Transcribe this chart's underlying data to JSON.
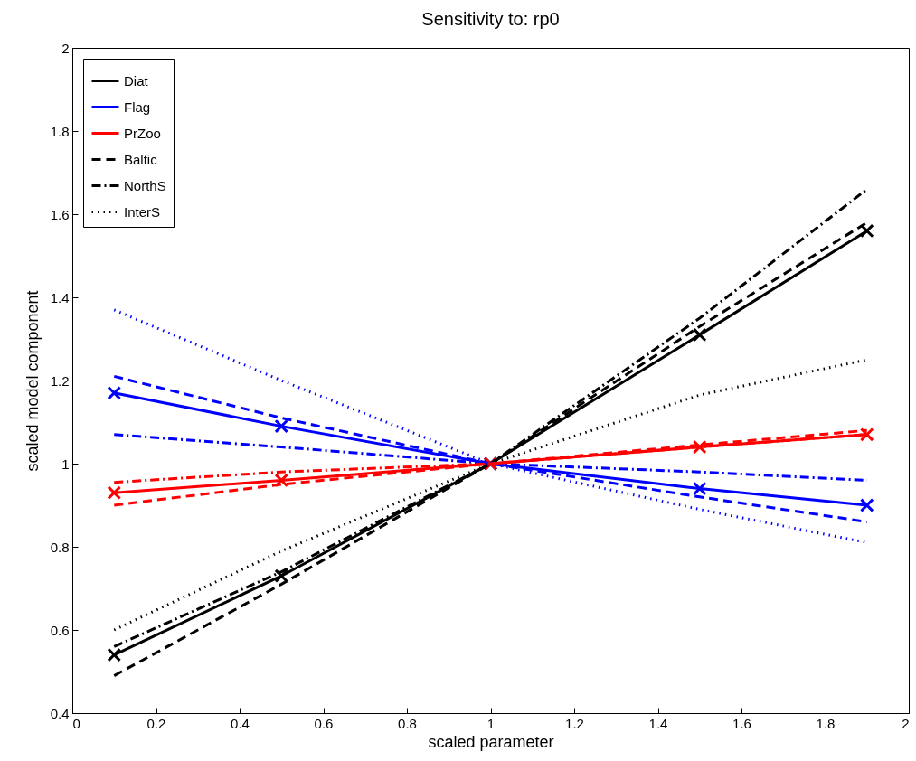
{
  "chart_data": {
    "type": "line",
    "title": "Sensitivity to: rp0",
    "xlabel": "scaled parameter",
    "ylabel": "scaled model component",
    "x": [
      0.1,
      0.5,
      1,
      1.5,
      1.9
    ],
    "xlim": [
      0,
      2
    ],
    "xticks": [
      0,
      0.2,
      0.4,
      0.6,
      0.8,
      1,
      1.2,
      1.4,
      1.6,
      1.8,
      2
    ],
    "ylim": [
      0.4,
      2
    ],
    "yticks": [
      0.4,
      0.6,
      0.8,
      1,
      1.2,
      1.4,
      1.6,
      1.8,
      2
    ],
    "grid": false,
    "legend": "top left",
    "series": [
      {
        "name": "Diat",
        "color": "#000000",
        "line_style": "solid",
        "marker": "cross",
        "values": [
          0.54,
          0.73,
          1,
          1.31,
          1.56
        ]
      },
      {
        "name": "Flag",
        "color": "#0000ff",
        "line_style": "solid",
        "marker": "cross",
        "values": [
          1.17,
          1.09,
          1,
          0.94,
          0.9
        ]
      },
      {
        "name": "PrZoo",
        "color": "#ff0000",
        "line_style": "solid",
        "marker": "cross",
        "values": [
          0.93,
          0.96,
          1,
          1.04,
          1.07
        ]
      },
      {
        "name": "Baltic",
        "color": "#000000",
        "line_style": "dashed",
        "marker": "none",
        "values": [
          0.49,
          0.71,
          1,
          1.33,
          1.58
        ]
      },
      {
        "name": "NorthS",
        "color": "#000000",
        "line_style": "dashdot",
        "marker": "none",
        "values": [
          0.56,
          0.74,
          1,
          1.35,
          1.66
        ]
      },
      {
        "name": "InterS",
        "color": "#000000",
        "line_style": "dotted",
        "marker": "none",
        "values": [
          0.6,
          0.79,
          1,
          1.165,
          1.25
        ]
      },
      {
        "color": "#0000ff",
        "line_style": "dashed",
        "marker": "none",
        "values": [
          1.21,
          1.11,
          1,
          0.92,
          0.86
        ]
      },
      {
        "color": "#0000ff",
        "line_style": "dashdot",
        "marker": "none",
        "values": [
          1.07,
          1.04,
          1,
          0.98,
          0.96
        ]
      },
      {
        "color": "#0000ff",
        "line_style": "dotted",
        "marker": "none",
        "values": [
          1.37,
          1.2,
          1,
          0.89,
          0.81
        ]
      },
      {
        "color": "#ff0000",
        "line_style": "dashed",
        "marker": "none",
        "values": [
          0.9,
          0.95,
          1,
          1.045,
          1.08
        ]
      },
      {
        "color": "#ff0000",
        "line_style": "dashdot",
        "marker": "none",
        "values": [
          0.955,
          0.98,
          1,
          1.04,
          1.07
        ]
      }
    ]
  }
}
